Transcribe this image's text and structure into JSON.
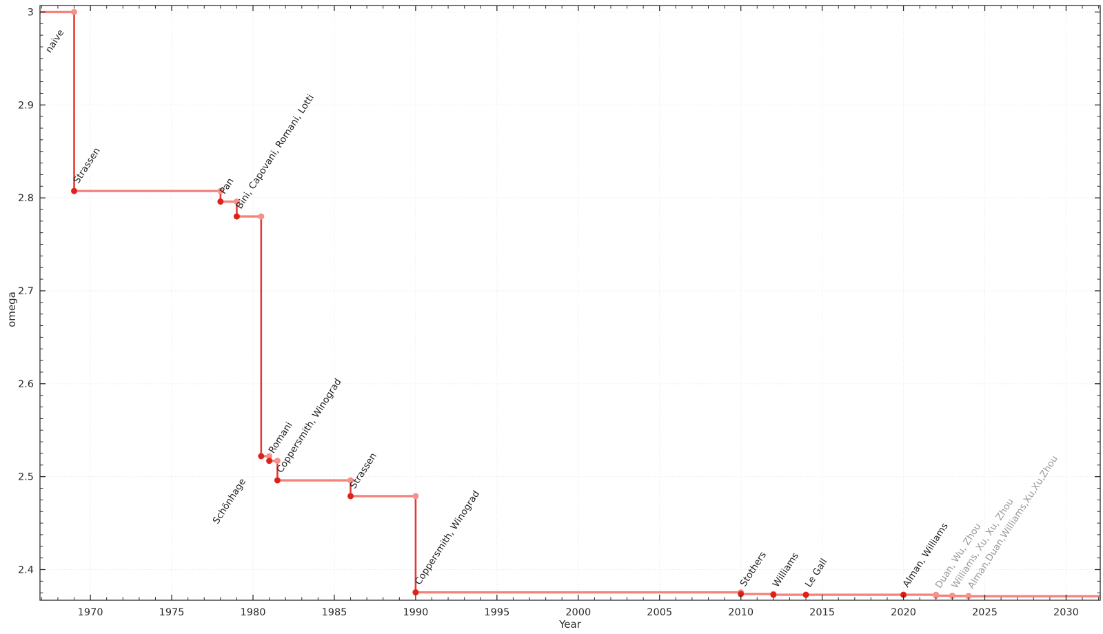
{
  "chart_data": {
    "type": "line",
    "subtype": "step-post",
    "title": "",
    "xlabel": "Year",
    "ylabel": "omega",
    "xlim": [
      1966.9,
      2032.1
    ],
    "ylim": [
      2.367,
      3.007
    ],
    "x_major_ticks": [
      1970,
      1975,
      1980,
      1985,
      1990,
      1995,
      2000,
      2005,
      2010,
      2015,
      2020,
      2025,
      2030
    ],
    "x_minor_step": 1,
    "y_major_ticks": [
      2.4,
      2.5,
      2.6,
      2.7,
      2.8,
      2.9,
      3.0
    ],
    "y_minor_step": 0.0125,
    "grid": "major-dotted",
    "legend": "none",
    "line_extends_to": 2032.1,
    "colors": {
      "segment_horizontal": "#f4837b",
      "segment_vertical": "#e53a33",
      "point_established": "#e0211a",
      "point_recent": "#f5908a",
      "label_established": "#1f1f1f",
      "label_recent": "#9a9a9a",
      "axis": "#2a2a2a",
      "grid": "#e3e3e3"
    },
    "points": [
      {
        "year": 1966.9,
        "omega": 3.0,
        "label": "naive",
        "recent": false
      },
      {
        "year": 1969,
        "omega": 2.8074,
        "label": "Strassen",
        "recent": false
      },
      {
        "year": 1978,
        "omega": 2.796,
        "label": "Pan",
        "recent": false
      },
      {
        "year": 1979,
        "omega": 2.78,
        "label": "Bini, Capovani, Romani, Lotti",
        "recent": false
      },
      {
        "year": 1980.5,
        "omega": 2.522,
        "label": "Schönhage",
        "recent": false
      },
      {
        "year": 1981,
        "omega": 2.517,
        "label": "Romani",
        "recent": false
      },
      {
        "year": 1981.5,
        "omega": 2.496,
        "label": "Coppersmith, Winograd",
        "recent": false
      },
      {
        "year": 1986,
        "omega": 2.479,
        "label": "Strassen",
        "recent": false
      },
      {
        "year": 1990,
        "omega": 2.3755,
        "label": "Coppersmith, Winograd",
        "recent": false
      },
      {
        "year": 2010,
        "omega": 2.3737,
        "label": "Stothers",
        "recent": false
      },
      {
        "year": 2012,
        "omega": 2.3729,
        "label": "Williams",
        "recent": false
      },
      {
        "year": 2014,
        "omega": 2.3728639,
        "label": "Le Gall",
        "recent": false
      },
      {
        "year": 2020,
        "omega": 2.3728596,
        "label": "Alman, Williams",
        "recent": false
      },
      {
        "year": 2022,
        "omega": 2.371866,
        "label": "Duan, Wu, Zhou",
        "recent": true
      },
      {
        "year": 2023,
        "omega": 2.371552,
        "label": "Williams, Xu, Xu, Zhou",
        "recent": true
      },
      {
        "year": 2024,
        "omega": 2.371339,
        "label": "Alman,Duan,Williams,Xu,Xu,Zhou",
        "recent": true
      }
    ]
  }
}
